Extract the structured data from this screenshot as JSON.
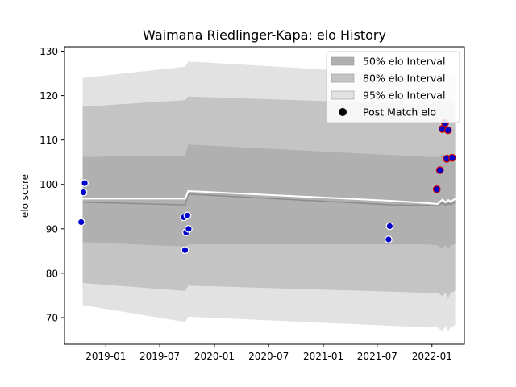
{
  "chart_data": {
    "type": "line",
    "title": "Waimana Riedlinger-Kapa: elo History",
    "xlabel": "",
    "ylabel": "elo score",
    "x_axis_type": "date",
    "xlim": [
      "2018-08-15",
      "2022-04-20"
    ],
    "ylim": [
      64,
      131
    ],
    "x_ticks": [
      "2019-01-01",
      "2019-07-01",
      "2020-01-01",
      "2020-07-01",
      "2021-01-01",
      "2021-07-01",
      "2022-01-01"
    ],
    "x_tick_labels": [
      "2019-01",
      "2019-07",
      "2020-01",
      "2020-07",
      "2021-01",
      "2021-07",
      "2022-01"
    ],
    "y_ticks": [
      70,
      80,
      90,
      100,
      110,
      120,
      130
    ],
    "grid": false,
    "legend_position": "top-right",
    "legend": [
      {
        "label": "50% elo Interval",
        "swatch": "band50"
      },
      {
        "label": "80% elo Interval",
        "swatch": "band80"
      },
      {
        "label": "95% elo Interval",
        "swatch": "band95"
      },
      {
        "label": "Post Match elo",
        "swatch": "dot"
      }
    ],
    "colors": {
      "band50": "#b0b0b0",
      "band80": "#c4c4c4",
      "band95": "#e2e2e2",
      "mean_line": "#ffffff",
      "median_line": "#8c8c8c",
      "point_blue": "#0000cc",
      "point_red_edge": "#cc0000"
    },
    "bands": {
      "x": [
        "2018-10-15",
        "2019-09-25",
        "2019-10-05",
        "2021-12-15",
        "2022-01-20",
        "2022-02-05",
        "2022-02-15",
        "2022-02-25",
        "2022-03-05",
        "2022-03-20"
      ],
      "p95_high": [
        124,
        126.5,
        127.7,
        124.5,
        124.7,
        125.5,
        124.8,
        125.8,
        124.5,
        125
      ],
      "p80_high": [
        117.5,
        119,
        119.8,
        118,
        118.3,
        119.2,
        118.5,
        119.3,
        118,
        118.5
      ],
      "p50_high": [
        106.2,
        106.5,
        109,
        106.2,
        106.2,
        106.8,
        106.5,
        107,
        106.2,
        106.5
      ],
      "p50_low": [
        87,
        86,
        86.5,
        86.5,
        86.3,
        85.5,
        86.3,
        85.5,
        86.3,
        86.5
      ],
      "p80_low": [
        77.8,
        76,
        77.2,
        75.6,
        75.6,
        74.8,
        75.7,
        74.5,
        75.6,
        76
      ],
      "p95_low": [
        72.8,
        69,
        70.2,
        67.8,
        67.8,
        67,
        68,
        67,
        67.8,
        68.3
      ]
    },
    "mean_line": {
      "x": [
        "2018-10-15",
        "2019-09-25",
        "2019-10-05",
        "2021-08-20",
        "2021-12-15",
        "2022-01-20",
        "2022-02-05",
        "2022-02-15",
        "2022-02-25",
        "2022-03-05",
        "2022-03-20"
      ],
      "y": [
        96.8,
        96.8,
        98.5,
        96.3,
        95.8,
        95.6,
        96.6,
        96,
        96.5,
        96.1,
        96.8
      ]
    },
    "median_line": {
      "x": [
        "2018-10-15",
        "2019-09-25",
        "2019-10-05",
        "2021-08-20",
        "2021-12-15",
        "2022-01-20",
        "2022-02-05",
        "2022-02-15",
        "2022-02-25",
        "2022-03-05",
        "2022-03-20"
      ],
      "y": [
        96,
        95.4,
        97.8,
        95.4,
        95.3,
        95.2,
        95.8,
        95.4,
        95.7,
        95.5,
        96
      ]
    },
    "series": [
      {
        "name": "Post Match elo",
        "points": [
          {
            "x": "2018-10-10",
            "y": 91.5,
            "edge": "white"
          },
          {
            "x": "2018-10-18",
            "y": 98.2,
            "edge": "white"
          },
          {
            "x": "2018-10-22",
            "y": 100.3,
            "edge": "white"
          },
          {
            "x": "2019-09-20",
            "y": 92.6,
            "edge": "white"
          },
          {
            "x": "2019-09-24",
            "y": 85.2,
            "edge": "white"
          },
          {
            "x": "2019-09-28",
            "y": 89.2,
            "edge": "white"
          },
          {
            "x": "2019-10-02",
            "y": 93,
            "edge": "white"
          },
          {
            "x": "2019-10-06",
            "y": 90,
            "edge": "white"
          },
          {
            "x": "2021-08-08",
            "y": 87.6,
            "edge": "white"
          },
          {
            "x": "2021-08-12",
            "y": 90.6,
            "edge": "white"
          },
          {
            "x": "2022-01-17",
            "y": 98.9,
            "edge": "red"
          },
          {
            "x": "2022-01-28",
            "y": 103.2,
            "edge": "red"
          },
          {
            "x": "2022-02-05",
            "y": 112.5,
            "edge": "red"
          },
          {
            "x": "2022-02-14",
            "y": 113.8,
            "edge": "red"
          },
          {
            "x": "2022-02-20",
            "y": 105.8,
            "edge": "red"
          },
          {
            "x": "2022-02-24",
            "y": 112.2,
            "edge": "red"
          },
          {
            "x": "2022-03-10",
            "y": 106,
            "edge": "red"
          }
        ]
      }
    ]
  }
}
